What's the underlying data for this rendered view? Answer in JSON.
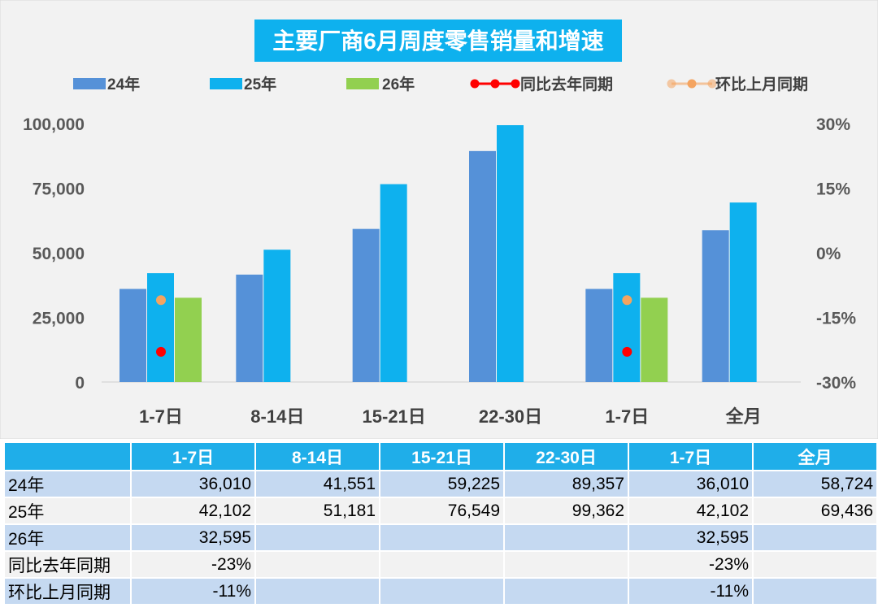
{
  "chart_data": {
    "type": "bar",
    "title": "主要厂商6月周度零售销量和增速",
    "categories": [
      "1-7日",
      "8-14日",
      "15-21日",
      "22-30日",
      "1-7日",
      "全月"
    ],
    "series": [
      {
        "name": "24年",
        "kind": "bar",
        "color": "#5591d8",
        "values": [
          36010,
          41551,
          59225,
          89357,
          36010,
          58724
        ]
      },
      {
        "name": "25年",
        "kind": "bar",
        "color": "#0eb1ee",
        "values": [
          42102,
          51181,
          76549,
          99362,
          42102,
          69436
        ]
      },
      {
        "name": "26年",
        "kind": "bar",
        "color": "#92d050",
        "values": [
          32595,
          null,
          null,
          null,
          32595,
          null
        ]
      },
      {
        "name": "同比去年同期",
        "kind": "marker",
        "axis": "right",
        "color": "#ff0000",
        "values": [
          -23,
          null,
          null,
          null,
          -23,
          null
        ]
      },
      {
        "name": "环比上月同期",
        "kind": "marker",
        "axis": "right",
        "color": "#f4a460",
        "values": [
          -11,
          null,
          null,
          null,
          -11,
          null
        ]
      }
    ],
    "y_left": {
      "min": 0,
      "max": 100000,
      "ticks": [
        "0",
        "25,000",
        "50,000",
        "75,000",
        "100,000"
      ]
    },
    "y_right": {
      "min": -30,
      "max": 30,
      "ticks": [
        "-30%",
        "-15%",
        "0%",
        "15%",
        "30%"
      ]
    },
    "legend_position": "top",
    "grid": false
  },
  "table": {
    "columns": [
      "1-7日",
      "8-14日",
      "15-21日",
      "22-30日",
      "1-7日",
      "全月"
    ],
    "rows": [
      {
        "label": "24年",
        "cells": [
          "36,010",
          "41,551",
          "59,225",
          "89,357",
          "36,010",
          "58,724"
        ]
      },
      {
        "label": "25年",
        "cells": [
          "42,102",
          "51,181",
          "76,549",
          "99,362",
          "42,102",
          "69,436"
        ]
      },
      {
        "label": "26年",
        "cells": [
          "32,595",
          "",
          "",
          "",
          "32,595",
          ""
        ]
      },
      {
        "label": "同比去年同期",
        "cells": [
          "-23%",
          "",
          "",
          "",
          "-23%",
          ""
        ]
      },
      {
        "label": "环比上月同期",
        "cells": [
          "-11%",
          "",
          "",
          "",
          "-11%",
          ""
        ]
      }
    ]
  }
}
